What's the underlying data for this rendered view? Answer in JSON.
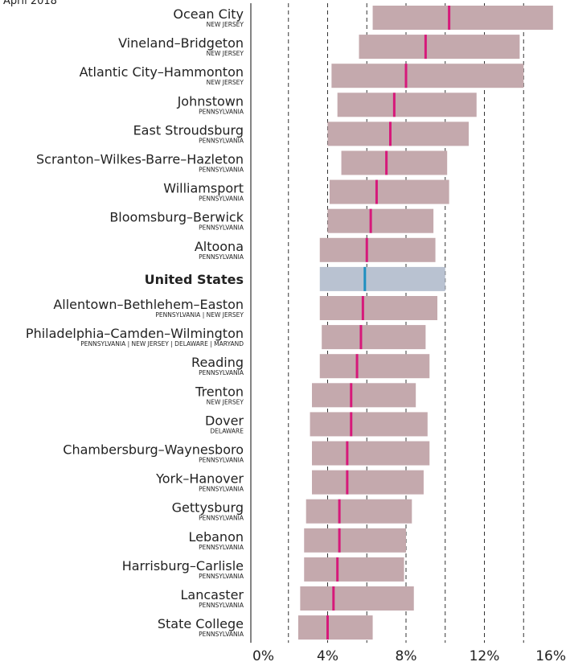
{
  "chart_data": {
    "type": "range",
    "subtitle": "April 2018",
    "xlim": [
      0,
      16
    ],
    "xticks": [
      {
        "value": 0,
        "label": "0%"
      },
      {
        "value": 4,
        "label": "4%"
      },
      {
        "value": 8,
        "label": "8%"
      },
      {
        "value": 12,
        "label": "12%"
      },
      {
        "value": 16,
        "label": "16%"
      }
    ],
    "gridlines": [
      2,
      4,
      6,
      8,
      10,
      12,
      14
    ],
    "bar_color": "#c4a9ad",
    "marker_color": "#d6197a",
    "highlight_bar_color": "#b9c2d1",
    "highlight_marker_color": "#1f8fc0",
    "rows": [
      {
        "name": "Ocean City",
        "state": "NEW JERSEY",
        "low": 6.3,
        "high": 15.5,
        "value": 10.2
      },
      {
        "name": "Vineland–Bridgeton",
        "state": "NEW JERSEY",
        "low": 5.6,
        "high": 13.8,
        "value": 9.0
      },
      {
        "name": "Atlantic City–Hammonton",
        "state": "NEW JERSEY",
        "low": 4.2,
        "high": 14.0,
        "value": 8.0
      },
      {
        "name": "Johnstown",
        "state": "PENNSYLVANIA",
        "low": 4.5,
        "high": 11.6,
        "value": 7.4
      },
      {
        "name": "East Stroudsburg",
        "state": "PENNSYLVANIA",
        "low": 4.0,
        "high": 11.2,
        "value": 7.2
      },
      {
        "name": "Scranton–Wilkes-Barre–Hazleton",
        "state": "PENNSYLVANIA",
        "low": 4.7,
        "high": 10.1,
        "value": 7.0
      },
      {
        "name": "Williamsport",
        "state": "PENNSYLVANIA",
        "low": 4.1,
        "high": 10.2,
        "value": 6.5
      },
      {
        "name": "Bloomsburg–Berwick",
        "state": "PENNSYLVANIA",
        "low": 4.0,
        "high": 9.4,
        "value": 6.2
      },
      {
        "name": "Altoona",
        "state": "PENNSYLVANIA",
        "low": 3.6,
        "high": 9.5,
        "value": 6.0
      },
      {
        "name": "United States",
        "highlight": true,
        "low": 3.6,
        "high": 10.0,
        "value": 5.9
      },
      {
        "name": "Allentown–Bethlehem–Easton",
        "state": "PENNSYLVANIA | NEW JERSEY",
        "low": 3.6,
        "high": 9.6,
        "value": 5.8
      },
      {
        "name": "Philadelphia–Camden–Wilmington",
        "state": "PENNSYLVANIA | NEW JERSEY | DELAWARE | MARYAND",
        "low": 3.7,
        "high": 9.0,
        "value": 5.7
      },
      {
        "name": "Reading",
        "state": "PENNSYLVANIA",
        "low": 3.6,
        "high": 9.2,
        "value": 5.5
      },
      {
        "name": "Trenton",
        "state": "NEW JERSEY",
        "low": 3.2,
        "high": 8.5,
        "value": 5.2
      },
      {
        "name": "Dover",
        "state": "DELAWARE",
        "low": 3.1,
        "high": 9.1,
        "value": 5.2
      },
      {
        "name": "Chambersburg–Waynesboro",
        "state": "PENNSYLVANIA",
        "low": 3.2,
        "high": 9.2,
        "value": 5.0
      },
      {
        "name": "York–Hanover",
        "state": "PENNSYLVANIA",
        "low": 3.2,
        "high": 8.9,
        "value": 5.0
      },
      {
        "name": "Gettysburg",
        "state": "PENNSYLVANIA",
        "low": 2.9,
        "high": 8.3,
        "value": 4.6
      },
      {
        "name": "Lebanon",
        "state": "PENNSYLVANIA",
        "low": 2.8,
        "high": 8.0,
        "value": 4.6
      },
      {
        "name": "Harrisburg–Carlisle",
        "state": "PENNSYLVANIA",
        "low": 2.8,
        "high": 7.9,
        "value": 4.5
      },
      {
        "name": "Lancaster",
        "state": "PENNSYLVANIA",
        "low": 2.6,
        "high": 8.4,
        "value": 4.3
      },
      {
        "name": "State College",
        "state": "PENNSYLVANIA",
        "low": 2.5,
        "high": 6.3,
        "value": 4.0
      }
    ]
  }
}
